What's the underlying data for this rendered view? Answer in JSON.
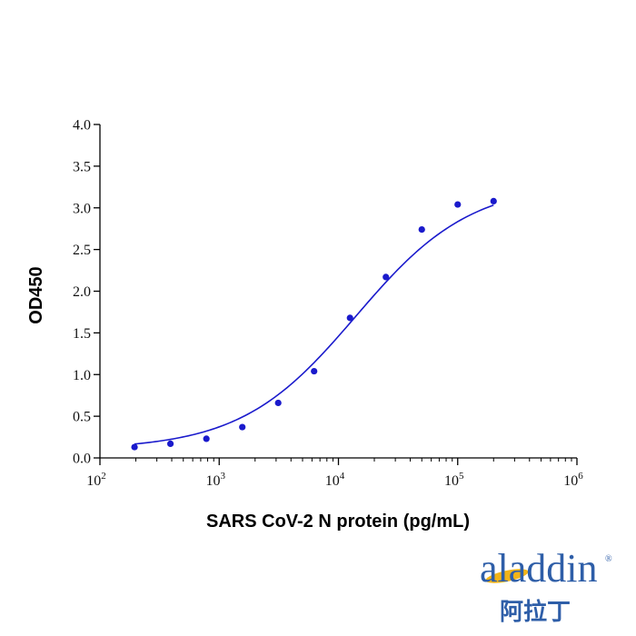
{
  "chart_data": {
    "type": "scatter",
    "title": "",
    "xlabel": "SARS CoV-2 N protein (pg/mL)",
    "ylabel": "OD450",
    "x_scale": "log",
    "xlim": [
      100,
      1000000
    ],
    "ylim": [
      0,
      4
    ],
    "x_ticks": [
      {
        "base": "10",
        "exp": "2",
        "value": 100
      },
      {
        "base": "10",
        "exp": "3",
        "value": 1000
      },
      {
        "base": "10",
        "exp": "4",
        "value": 10000
      },
      {
        "base": "10",
        "exp": "5",
        "value": 100000
      },
      {
        "base": "10",
        "exp": "6",
        "value": 1000000
      }
    ],
    "y_ticks": [
      "0.0",
      "0.5",
      "1.0",
      "1.5",
      "2.0",
      "2.5",
      "3.0",
      "3.5",
      "4.0"
    ],
    "grid": false,
    "series": [
      {
        "color": "#1a1acc",
        "x": [
          195,
          390,
          781,
          1563,
          3125,
          6250,
          12500,
          25000,
          50000,
          100000,
          200000
        ],
        "y": [
          0.13,
          0.17,
          0.23,
          0.37,
          0.66,
          1.04,
          1.68,
          2.17,
          2.74,
          3.04,
          3.08
        ]
      }
    ],
    "fit_curve": {
      "color": "#1a1acc",
      "model": "4PL",
      "bottom": 0.1,
      "top": 3.3,
      "ec50": 14000,
      "hill": 0.9,
      "x_range": [
        195,
        200000
      ]
    }
  },
  "logo": {
    "word": "aladdin",
    "chinese": "阿拉丁",
    "registered": "®",
    "color": "#2e5ea8",
    "accent": "#f2b417"
  }
}
